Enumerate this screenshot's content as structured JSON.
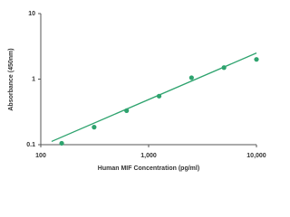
{
  "chart_data": {
    "type": "scatter",
    "x_label": "Human MIF Concentration (pg/ml)",
    "y_label": "Absorbance (450nm)",
    "x": [
      156.25,
      312.5,
      625,
      1250,
      2500,
      5000,
      10000
    ],
    "values": [
      0.105,
      0.185,
      0.33,
      0.55,
      1.05,
      1.5,
      2.0
    ],
    "color": "#2ea36e",
    "fit": {
      "x": [
        126,
        10000
      ],
      "y": [
        0.112,
        2.5
      ],
      "color": "#2ea36e"
    },
    "xlim": [
      100,
      10000
    ],
    "ylim": [
      0.1,
      10
    ],
    "xticks": [
      100,
      {
        "value": 1000,
        "label": "1,000"
      },
      {
        "value": 10000,
        "label": "10,000"
      }
    ],
    "yticks": [
      0.1,
      1,
      10
    ],
    "xlog": true,
    "ylog": true
  }
}
